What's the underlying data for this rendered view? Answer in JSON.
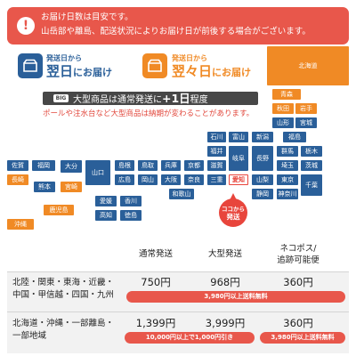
{
  "notice": {
    "icon": "exclamation-icon",
    "line1": "お届け日数は目安です。",
    "line2": "山岳部や離島、配送状況によりお届け日が前後する場合がございます。"
  },
  "legend": {
    "next_day": {
      "icon": "package-icon",
      "caption": "発送日から",
      "emphasis": "翌日",
      "suffix": "にお届け"
    },
    "two_day": {
      "icon": "package-icon",
      "caption": "発送日から",
      "emphasis": "翌々日",
      "suffix": "にお届け"
    }
  },
  "large_item_notice": {
    "badge": "BIG",
    "text_before": "大型商品は通常発送に",
    "emphasis": "+1日",
    "text_after": "程度"
  },
  "large_item_note": "ポールや注水台など大型商品は納期が変わることがあります。",
  "map": {
    "two_day_prefectures": [
      "北海道",
      "青森",
      "秋田",
      "岩手",
      "長崎",
      "宮崎",
      "鹿児島",
      "沖縄"
    ],
    "next_day_prefectures": [
      "山形",
      "宮城",
      "石川",
      "富山",
      "新潟",
      "福島",
      "福井",
      "岐阜",
      "長野",
      "群馬",
      "栃木",
      "埼玉",
      "茨城",
      "滋賀",
      "三重",
      "山梨",
      "東京",
      "千葉",
      "静岡",
      "神奈川",
      "京都",
      "兵庫",
      "鳥取",
      "島根",
      "山口",
      "大阪",
      "奈良",
      "岡山",
      "広島",
      "和歌山",
      "愛媛",
      "香川",
      "高知",
      "徳島",
      "佐賀",
      "福岡",
      "大分",
      "熊本"
    ],
    "origin_prefecture": "愛知",
    "origin_pin": {
      "line1": "ココから",
      "line2": "発送"
    }
  },
  "shipping_table": {
    "headers": {
      "standard": "通常発送",
      "large": "大型発送",
      "nekopos_line1": "ネコポス/",
      "nekopos_line2": "追跡可能便"
    },
    "rows": [
      {
        "region_line1": "北陸・関東・東海・近畿・",
        "region_line2": "中国・甲信越・四国・九州",
        "standard": "750円",
        "large": "968円",
        "nekopos": "360円",
        "promotions": [
          "3,980円以上送料無料"
        ]
      },
      {
        "region_line1": "北海道・沖縄・一部離島・",
        "region_line2": "一部地域",
        "standard": "1,399円",
        "large": "3,999円",
        "nekopos": "360円",
        "promotions": [
          "10,000円以上で1,000円引き",
          "3,980円以上送料無料"
        ]
      }
    ]
  },
  "colors": {
    "accent_red": "#e8574b",
    "pin_red": "#e8453c",
    "next_day_blue": "#2a5f99",
    "two_day_orange": "#f08a25",
    "dark_bar": "#474747"
  }
}
